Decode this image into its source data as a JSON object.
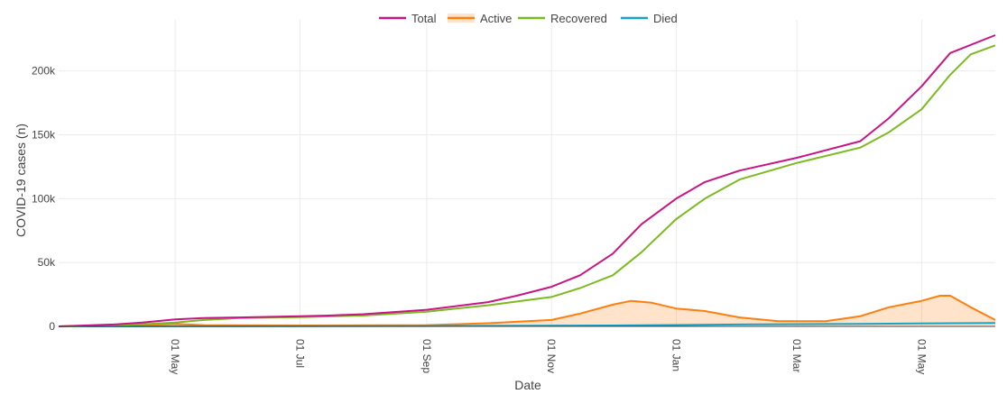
{
  "chart_data": {
    "type": "line",
    "xlabel": "Date",
    "ylabel": "COVID-19 cases (n)",
    "x_ticks": [
      "01 May",
      "01 Jul",
      "01 Sep",
      "01 Nov",
      "01 Jan",
      "01 Mar",
      "01 May"
    ],
    "y_ticks": [
      "0",
      "50k",
      "100k",
      "150k",
      "200k"
    ],
    "xlim": [
      "2020-03-05",
      "2021-06-06"
    ],
    "ylim": [
      0,
      240000
    ],
    "legend_position": "top-center",
    "grid": true,
    "series": [
      {
        "name": "Total",
        "color": "#c71585",
        "fill": false,
        "points": [
          [
            "2020-03-05",
            0
          ],
          [
            "2020-04-01",
            1500
          ],
          [
            "2020-04-15",
            3000
          ],
          [
            "2020-05-01",
            5500
          ],
          [
            "2020-05-15",
            6500
          ],
          [
            "2020-06-01",
            7000
          ],
          [
            "2020-07-01",
            8000
          ],
          [
            "2020-07-15",
            8500
          ],
          [
            "2020-08-01",
            9500
          ],
          [
            "2020-09-01",
            13000
          ],
          [
            "2020-10-01",
            19000
          ],
          [
            "2020-10-15",
            24000
          ],
          [
            "2020-11-01",
            31000
          ],
          [
            "2020-11-15",
            40000
          ],
          [
            "2020-12-01",
            57000
          ],
          [
            "2020-12-15",
            80000
          ],
          [
            "2021-01-01",
            100000
          ],
          [
            "2021-01-15",
            113000
          ],
          [
            "2021-02-01",
            122000
          ],
          [
            "2021-03-01",
            132000
          ],
          [
            "2021-04-01",
            145000
          ],
          [
            "2021-04-15",
            163000
          ],
          [
            "2021-05-01",
            188000
          ],
          [
            "2021-05-15",
            214000
          ],
          [
            "2021-06-06",
            228000
          ]
        ]
      },
      {
        "name": "Active",
        "color": "#ff7f0e",
        "fill": true,
        "points": [
          [
            "2020-03-05",
            0
          ],
          [
            "2020-04-15",
            1000
          ],
          [
            "2020-05-01",
            2000
          ],
          [
            "2020-05-15",
            1000
          ],
          [
            "2020-07-01",
            700
          ],
          [
            "2020-09-01",
            1000
          ],
          [
            "2020-10-01",
            2500
          ],
          [
            "2020-11-01",
            5000
          ],
          [
            "2020-11-15",
            10000
          ],
          [
            "2020-12-01",
            17000
          ],
          [
            "2020-12-10",
            20000
          ],
          [
            "2020-12-20",
            18500
          ],
          [
            "2021-01-01",
            14000
          ],
          [
            "2021-01-15",
            12000
          ],
          [
            "2021-02-01",
            7000
          ],
          [
            "2021-02-20",
            4000
          ],
          [
            "2021-03-15",
            4000
          ],
          [
            "2021-04-01",
            8000
          ],
          [
            "2021-04-15",
            15000
          ],
          [
            "2021-05-01",
            20000
          ],
          [
            "2021-05-10",
            24000
          ],
          [
            "2021-05-15",
            24000
          ],
          [
            "2021-05-25",
            15000
          ],
          [
            "2021-06-06",
            5000
          ]
        ]
      },
      {
        "name": "Recovered",
        "color": "#7cba21",
        "fill": false,
        "points": [
          [
            "2020-03-05",
            0
          ],
          [
            "2020-04-01",
            500
          ],
          [
            "2020-05-01",
            3000
          ],
          [
            "2020-05-15",
            5000
          ],
          [
            "2020-06-01",
            6500
          ],
          [
            "2020-07-01",
            7300
          ],
          [
            "2020-08-01",
            8500
          ],
          [
            "2020-09-01",
            11500
          ],
          [
            "2020-10-01",
            16500
          ],
          [
            "2020-11-01",
            23000
          ],
          [
            "2020-11-15",
            30000
          ],
          [
            "2020-12-01",
            40000
          ],
          [
            "2020-12-15",
            58000
          ],
          [
            "2021-01-01",
            84000
          ],
          [
            "2021-01-15",
            100000
          ],
          [
            "2021-02-01",
            115000
          ],
          [
            "2021-03-01",
            128000
          ],
          [
            "2021-04-01",
            140000
          ],
          [
            "2021-04-15",
            152000
          ],
          [
            "2021-05-01",
            170000
          ],
          [
            "2021-05-15",
            197000
          ],
          [
            "2021-05-25",
            213000
          ],
          [
            "2021-06-06",
            220000
          ]
        ]
      },
      {
        "name": "Died",
        "color": "#17a2c8",
        "fill": false,
        "points": [
          [
            "2020-03-05",
            0
          ],
          [
            "2020-05-01",
            100
          ],
          [
            "2020-09-01",
            300
          ],
          [
            "2020-12-01",
            700
          ],
          [
            "2021-02-01",
            1500
          ],
          [
            "2021-04-01",
            2000
          ],
          [
            "2021-06-06",
            2700
          ]
        ]
      }
    ]
  }
}
